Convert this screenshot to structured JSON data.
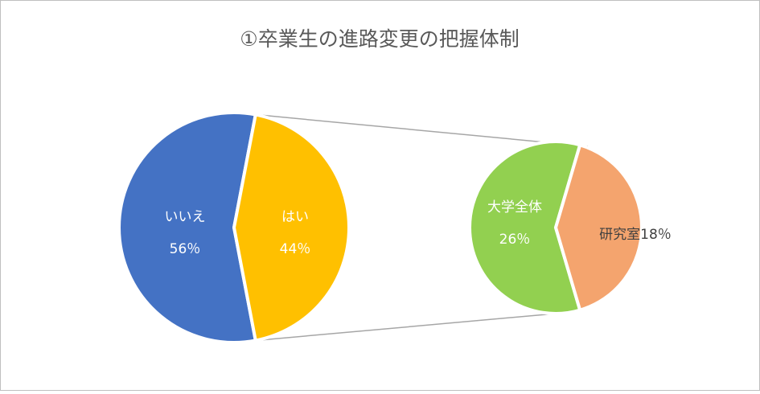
{
  "chart_data": [
    {
      "type": "pie",
      "title": "①卒業生の進路変更の把握体制",
      "categories": [
        "いいえ",
        "はい"
      ],
      "values": [
        56,
        44
      ],
      "value_labels": [
        "56％",
        "44％"
      ],
      "colors": [
        "#4472c4",
        "#ffc000"
      ]
    },
    {
      "type": "pie",
      "categories": [
        "大学全体",
        "研究室"
      ],
      "values": [
        26,
        18
      ],
      "value_labels": [
        "26％",
        "18％"
      ],
      "colors": [
        "#92d050",
        "#f4a46e"
      ]
    }
  ]
}
